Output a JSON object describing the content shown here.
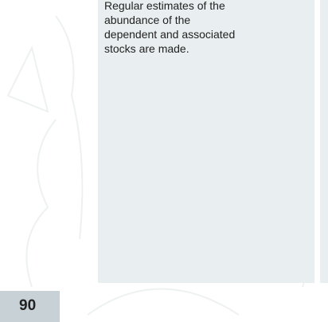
{
  "body": {
    "text": "Regular estimates of the abundance of the dependent and associated stocks are made."
  },
  "page_number": "90"
}
